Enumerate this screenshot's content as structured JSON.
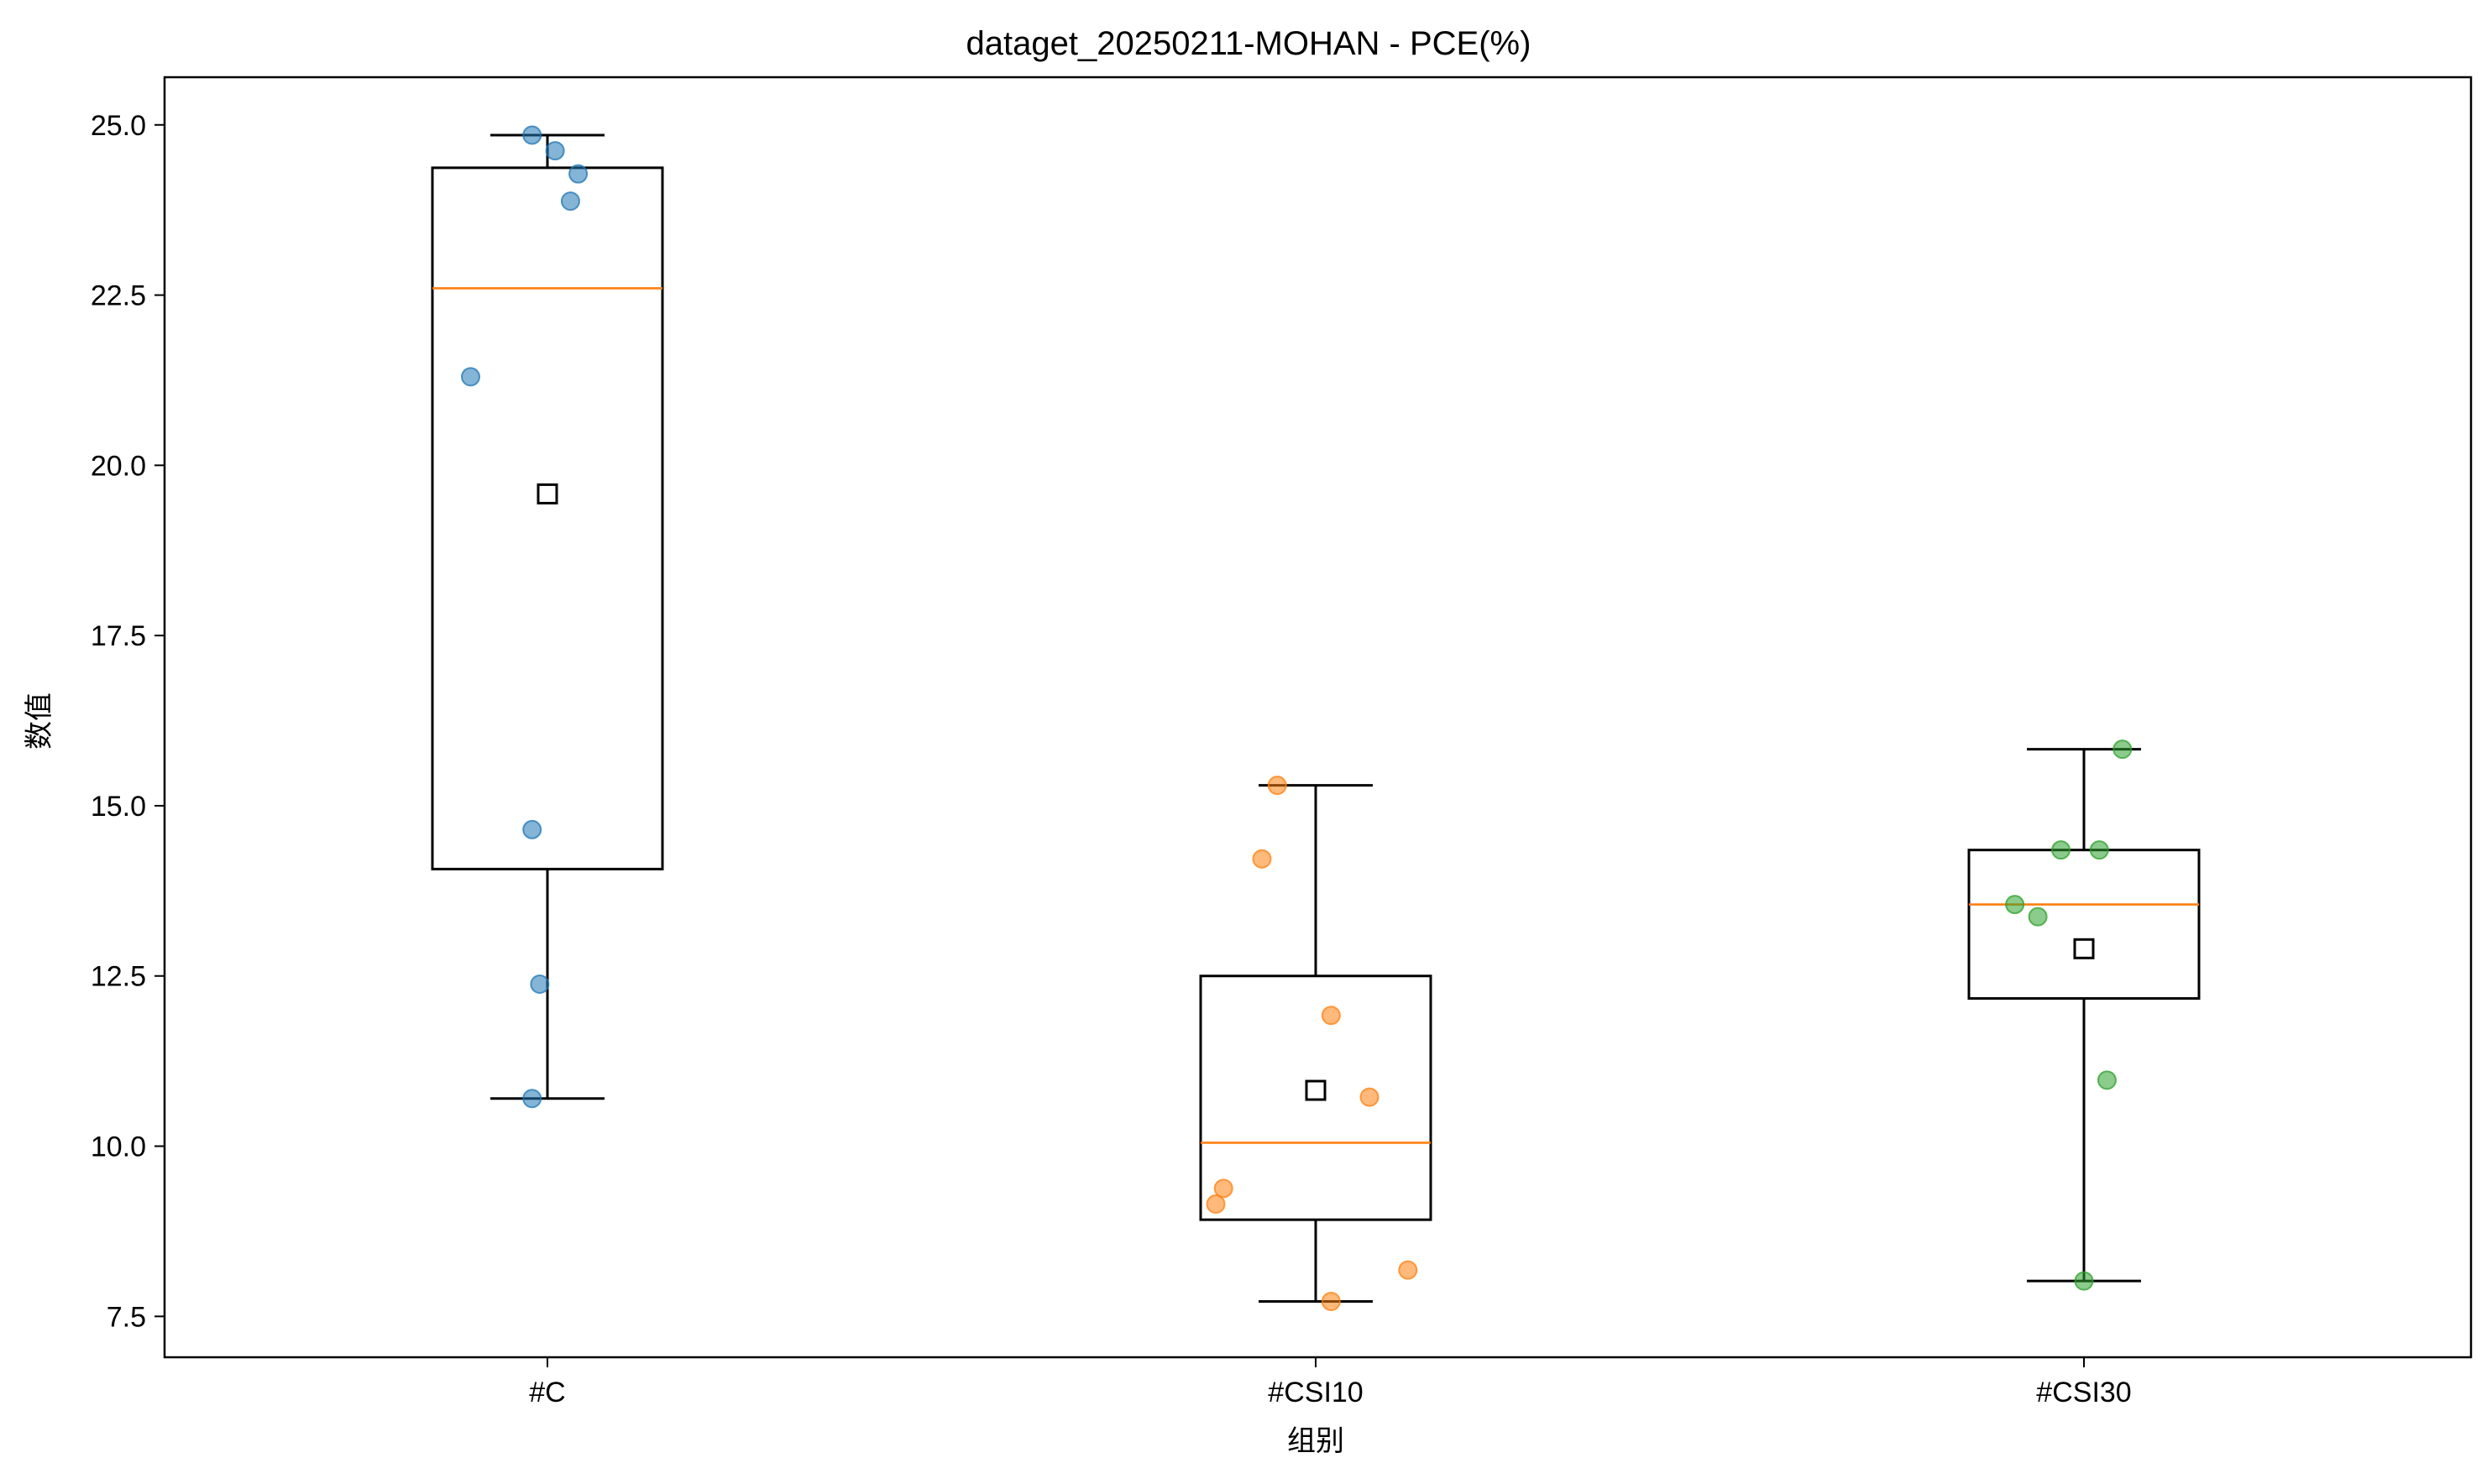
{
  "chart_data": {
    "type": "box",
    "title": "dataget_20250211-MOHAN - PCE(%)",
    "xlabel": "组别",
    "ylabel": "数值",
    "ylim": [
      6.9,
      25.7
    ],
    "yticks": [
      7.5,
      10.0,
      12.5,
      15.0,
      17.5,
      20.0,
      22.5,
      25.0
    ],
    "ytick_labels": [
      "7.5",
      "10.0",
      "12.5",
      "15.0",
      "17.5",
      "20.0",
      "22.5",
      "25.0"
    ],
    "categories": [
      "#C",
      "#CSI10",
      "#CSI30"
    ],
    "grid": false,
    "colors": {
      "median": "#ff7f0e",
      "box": "#000000",
      "points": [
        "#1f77b4",
        "#ff7f0e",
        "#2ca02c"
      ]
    },
    "groups": [
      {
        "name": "#C",
        "whisker_low": 10.7,
        "q1": 14.07,
        "median": 22.6,
        "q3": 24.37,
        "whisker_high": 24.85,
        "mean": 19.58,
        "points": [
          {
            "x": -0.02,
            "y": 24.85
          },
          {
            "x": 0.01,
            "y": 24.62
          },
          {
            "x": 0.04,
            "y": 24.28
          },
          {
            "x": 0.03,
            "y": 23.88
          },
          {
            "x": -0.1,
            "y": 21.3
          },
          {
            "x": -0.02,
            "y": 14.65
          },
          {
            "x": -0.01,
            "y": 12.38
          },
          {
            "x": -0.02,
            "y": 10.7
          }
        ]
      },
      {
        "name": "#CSI10",
        "whisker_low": 7.72,
        "q1": 8.92,
        "median": 10.05,
        "q3": 12.5,
        "whisker_high": 15.3,
        "mean": 10.82,
        "points": [
          {
            "x": -0.05,
            "y": 15.3
          },
          {
            "x": -0.07,
            "y": 14.22
          },
          {
            "x": 0.02,
            "y": 11.92
          },
          {
            "x": 0.07,
            "y": 10.72
          },
          {
            "x": -0.12,
            "y": 9.38
          },
          {
            "x": -0.13,
            "y": 9.15
          },
          {
            "x": 0.12,
            "y": 8.18
          },
          {
            "x": 0.02,
            "y": 7.72
          }
        ]
      },
      {
        "name": "#CSI30",
        "whisker_low": 8.02,
        "q1": 12.17,
        "median": 13.55,
        "q3": 14.35,
        "whisker_high": 15.83,
        "mean": 12.9,
        "points": [
          {
            "x": 0.05,
            "y": 15.83
          },
          {
            "x": -0.03,
            "y": 14.35
          },
          {
            "x": 0.02,
            "y": 14.35
          },
          {
            "x": -0.09,
            "y": 13.55
          },
          {
            "x": -0.06,
            "y": 13.37
          },
          {
            "x": 0.03,
            "y": 10.97
          },
          {
            "x": 0.0,
            "y": 8.02
          }
        ]
      }
    ]
  }
}
